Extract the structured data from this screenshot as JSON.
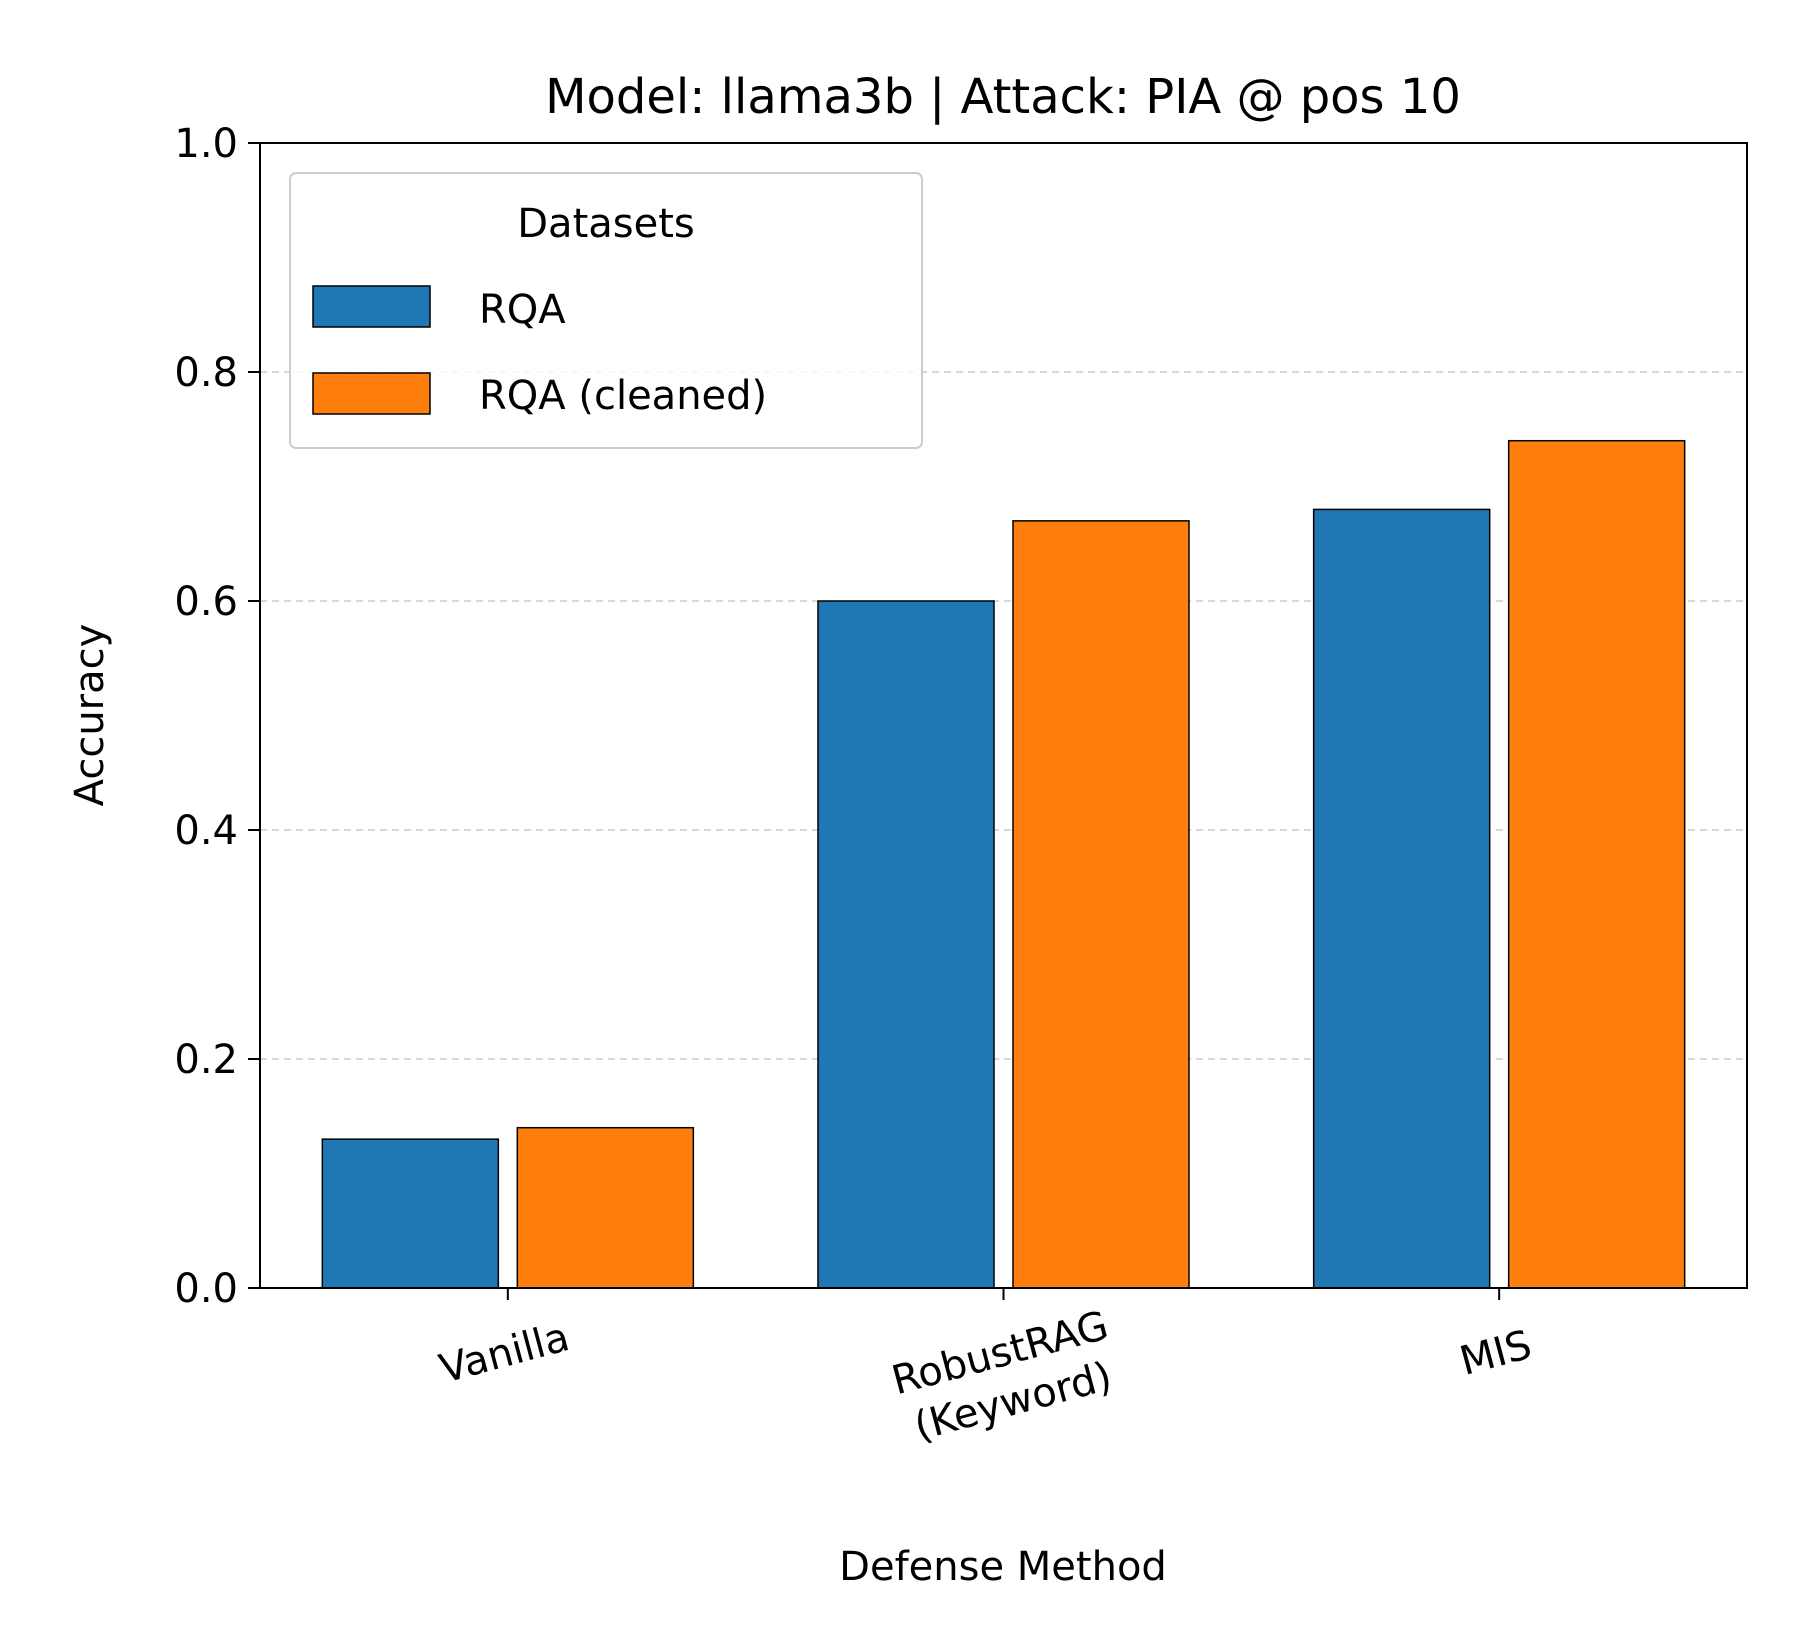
{
  "chart_data": {
    "type": "bar",
    "title": "Model: llama3b | Attack: PIA @ pos 10",
    "xlabel": "Defense Method",
    "ylabel": "Accuracy",
    "categories": [
      [
        "Vanilla"
      ],
      [
        "RobustRAG",
        "(Keyword)"
      ],
      [
        "MIS"
      ]
    ],
    "series": [
      {
        "name": "RQA",
        "color": "#1f77b4",
        "values": [
          0.13,
          0.6,
          0.68
        ]
      },
      {
        "name": "RQA (cleaned)",
        "color": "#ff7f0e",
        "values": [
          0.14,
          0.67,
          0.74
        ]
      }
    ],
    "ylim": [
      0,
      1.0
    ],
    "yticks": [
      "0.0",
      "0.2",
      "0.4",
      "0.6",
      "0.8",
      "1.0"
    ],
    "grid": "horizontal dashed",
    "legend": {
      "title": "Datasets",
      "placement": "top-left"
    }
  }
}
